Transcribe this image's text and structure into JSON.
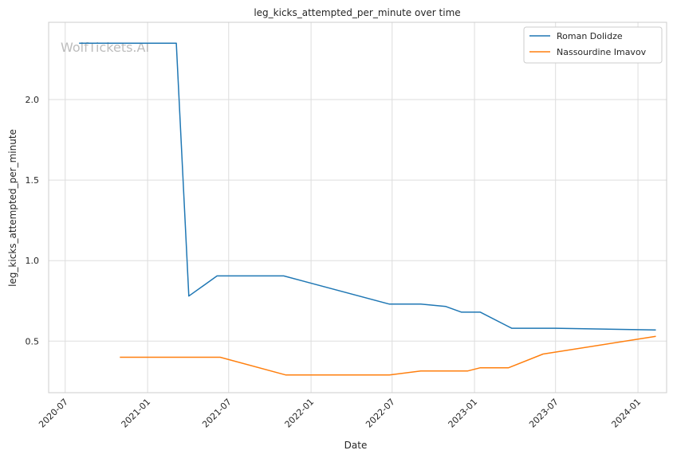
{
  "chart_data": {
    "type": "line",
    "title": "leg_kicks_attempted_per_minute over time",
    "xlabel": "Date",
    "ylabel": "leg_kicks_attempted_per_minute",
    "watermark": "WolfTickets.AI",
    "xlim": [
      "2020-05-25",
      "2024-03-05"
    ],
    "ylim": [
      0.18,
      2.48
    ],
    "grid": true,
    "legend_position": "top-right",
    "x_ticks": [
      "2020-07",
      "2021-01",
      "2021-07",
      "2022-01",
      "2022-07",
      "2023-01",
      "2023-07",
      "2024-01"
    ],
    "y_ticks": [
      0.5,
      1.0,
      1.5,
      2.0
    ],
    "y_tick_labels": [
      "0.5",
      "1.0",
      "1.5",
      "2.0"
    ],
    "series": [
      {
        "name": "Roman Dolidze",
        "color": "#1f77b4",
        "points": [
          {
            "x": "2020-08-01",
            "y": 2.35
          },
          {
            "x": "2021-03-06",
            "y": 2.35
          },
          {
            "x": "2021-04-03",
            "y": 0.78
          },
          {
            "x": "2021-06-05",
            "y": 0.905
          },
          {
            "x": "2021-11-01",
            "y": 0.905
          },
          {
            "x": "2022-06-25",
            "y": 0.73
          },
          {
            "x": "2022-09-03",
            "y": 0.73
          },
          {
            "x": "2022-10-29",
            "y": 0.715
          },
          {
            "x": "2022-12-03",
            "y": 0.68
          },
          {
            "x": "2023-01-14",
            "y": 0.68
          },
          {
            "x": "2023-03-25",
            "y": 0.58
          },
          {
            "x": "2023-07-01",
            "y": 0.58
          },
          {
            "x": "2024-02-10",
            "y": 0.57
          }
        ]
      },
      {
        "name": "Nassourdine Imavov",
        "color": "#ff7f0e",
        "points": [
          {
            "x": "2020-10-31",
            "y": 0.4
          },
          {
            "x": "2021-06-12",
            "y": 0.4
          },
          {
            "x": "2021-11-06",
            "y": 0.29
          },
          {
            "x": "2022-06-25",
            "y": 0.29
          },
          {
            "x": "2022-09-03",
            "y": 0.315
          },
          {
            "x": "2022-12-17",
            "y": 0.315
          },
          {
            "x": "2023-01-14",
            "y": 0.335
          },
          {
            "x": "2023-03-18",
            "y": 0.335
          },
          {
            "x": "2023-06-03",
            "y": 0.42
          },
          {
            "x": "2024-02-10",
            "y": 0.53
          }
        ]
      }
    ]
  }
}
